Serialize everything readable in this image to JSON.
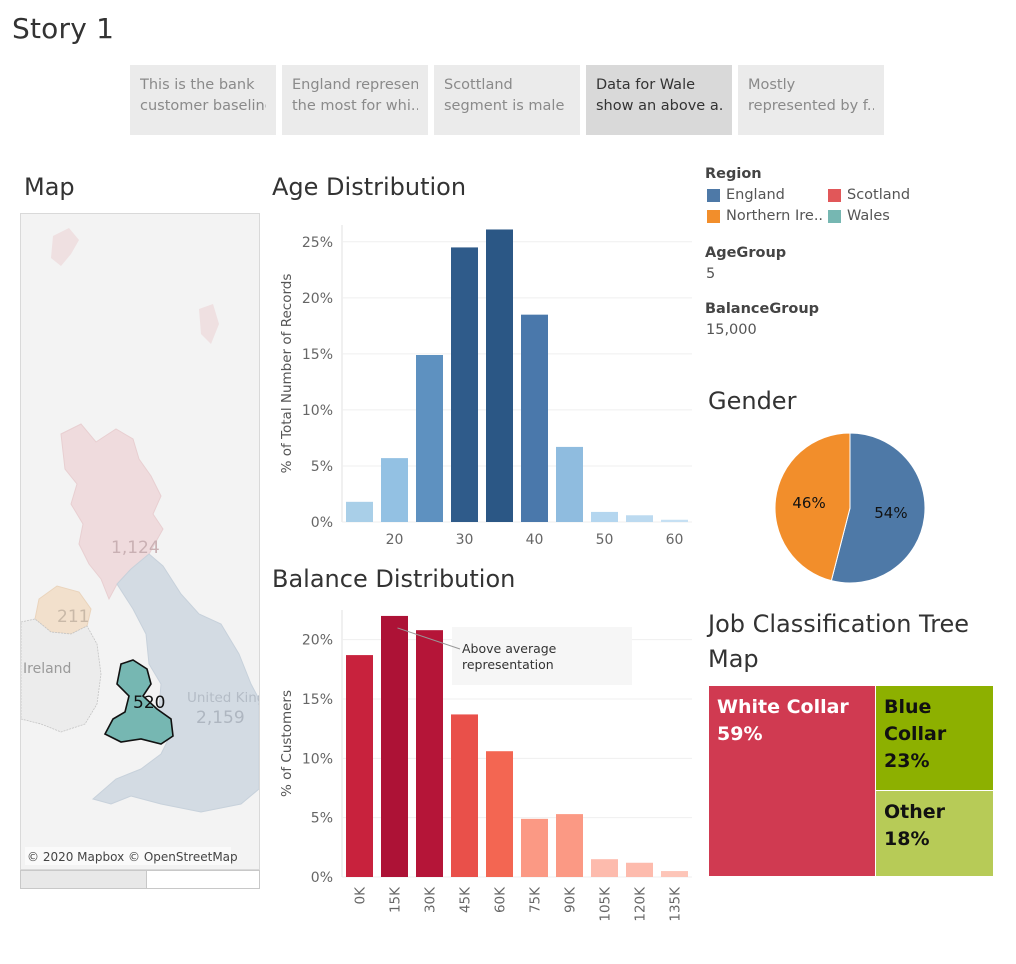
{
  "story": {
    "title": "Story 1",
    "tabs": [
      {
        "line1": "This is the bank",
        "line2": "customer baseline",
        "active": false
      },
      {
        "line1": "England represent",
        "line2": "the most for  whi..",
        "active": false
      },
      {
        "line1": "Scottland",
        "line2": "segment is male ..",
        "active": false
      },
      {
        "line1": "Data for Wale",
        "line2": "show an above a..",
        "active": true
      },
      {
        "line1": "Mostly",
        "line2": "represented by f..",
        "active": false
      }
    ]
  },
  "map": {
    "title": "Map",
    "labels": {
      "scotland": "1,124",
      "northern_ireland": "211",
      "wales": "520",
      "england": "2,159",
      "ireland": "Ireland",
      "uk": "United Kingdom"
    },
    "attribution": "© 2020 Mapbox © OpenStreetMap",
    "colors": {
      "england": "#4e79a7",
      "scotland": "#e15759",
      "northern_ireland": "#f28e2b",
      "wales": "#76b7b2"
    }
  },
  "legend": {
    "region_title": "Region",
    "regions": [
      {
        "name": "England",
        "color": "#4e79a7"
      },
      {
        "name": "Scotland",
        "color": "#e15759"
      },
      {
        "name": "Northern Ire..",
        "color": "#f28e2b"
      },
      {
        "name": "Wales",
        "color": "#76b7b2"
      }
    ],
    "age_group_title": "AgeGroup",
    "age_group_value": "5",
    "balance_group_title": "BalanceGroup",
    "balance_group_value": "15,000"
  },
  "chart_data": [
    {
      "type": "bar",
      "title": "Age Distribution",
      "ylabel": "% of Total Number of Records",
      "x": [
        15,
        20,
        25,
        30,
        35,
        40,
        45,
        50,
        55,
        60
      ],
      "values": [
        1.8,
        5.7,
        14.9,
        24.5,
        26.1,
        18.5,
        6.7,
        0.9,
        0.6,
        0.2
      ],
      "xticks": [
        "20",
        "30",
        "40",
        "50",
        "60"
      ],
      "xtick_values": [
        20,
        30,
        40,
        50,
        60
      ],
      "yticks": [
        "0%",
        "5%",
        "10%",
        "15%",
        "20%",
        "25%"
      ],
      "ylim": [
        0,
        26.5
      ],
      "colors": [
        "#a9cfe8",
        "#93c1e3",
        "#5e91c0",
        "#2f5b8a",
        "#2b5785",
        "#4a78ab",
        "#8fbcdf",
        "#b4d6ef",
        "#bcdaf0",
        "#c6e0f3"
      ]
    },
    {
      "type": "bar",
      "title": "Balance Distribution",
      "ylabel": "% of Customers",
      "categories": [
        "0K",
        "15K",
        "30K",
        "45K",
        "60K",
        "75K",
        "90K",
        "105K",
        "120K",
        "135K"
      ],
      "values": [
        18.7,
        22.0,
        20.8,
        13.7,
        10.6,
        4.9,
        5.3,
        1.5,
        1.2,
        0.5
      ],
      "yticks": [
        "0%",
        "5%",
        "10%",
        "15%",
        "20%"
      ],
      "ylim": [
        0,
        22.5
      ],
      "colors": [
        "#c8223d",
        "#ad1236",
        "#b51538",
        "#e9504a",
        "#f36652",
        "#fb9984",
        "#fb9984",
        "#fdbbad",
        "#fdbbad",
        "#fdc5b8"
      ],
      "annotation": {
        "line1": "Above average",
        "line2": "representation",
        "category": "15K"
      }
    },
    {
      "type": "pie",
      "title": "Gender",
      "slices": [
        {
          "label": "54%",
          "value": 54,
          "color": "#4e79a7"
        },
        {
          "label": "46%",
          "value": 46,
          "color": "#f28e2b"
        }
      ]
    },
    {
      "type": "treemap",
      "title_line1": "Job Classification Tree",
      "title_line2": "Map",
      "items": [
        {
          "name": "White Collar",
          "pct": "59%",
          "value": 59,
          "color": "#d03a51",
          "text_color": "#ffffff"
        },
        {
          "name": "Blue Collar",
          "pct": "23%",
          "value": 23,
          "color": "#8db000",
          "text_color": "#111111"
        },
        {
          "name": "Other",
          "pct": "18%",
          "value": 18,
          "color": "#b7cb57",
          "text_color": "#111111"
        }
      ]
    }
  ]
}
